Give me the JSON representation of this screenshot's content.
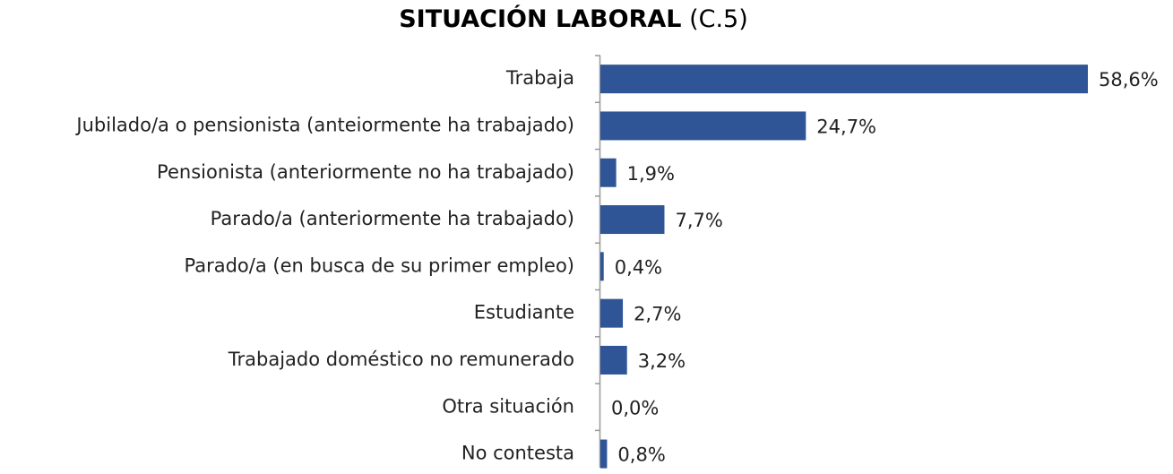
{
  "chart_data": {
    "type": "bar",
    "orientation": "horizontal",
    "title": "SITUACIÓN LABORAL",
    "title_note": "(C.5)",
    "categories": [
      "Trabaja",
      "Jubilado/a o pensionista (anteiormente ha trabajado)",
      "Pensionista (anteriormente no ha trabajado)",
      "Parado/a (anteriormente ha trabajado)",
      "Parado/a (en busca de su primer empleo)",
      "Estudiante",
      "Trabajado doméstico no remunerado",
      "Otra situación",
      "No contesta"
    ],
    "values": [
      58.6,
      24.7,
      1.9,
      7.7,
      0.4,
      2.7,
      3.2,
      0.0,
      0.8
    ],
    "value_labels": [
      "58,6%",
      "24,7%",
      "1,9%",
      "7,7%",
      "0,4%",
      "2,7%",
      "3,2%",
      "0,0%",
      "0,8%"
    ],
    "color": "#2f5597"
  }
}
